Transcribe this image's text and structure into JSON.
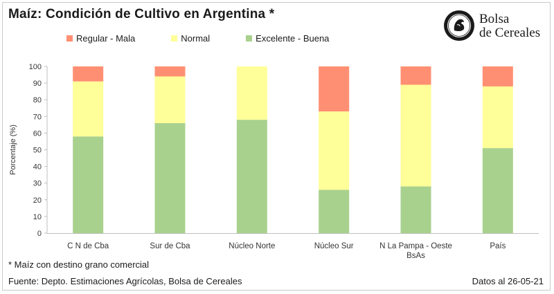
{
  "chart_data": {
    "type": "bar",
    "stacked": true,
    "title": "Maíz: Condición de Cultivo en Argentina *",
    "ylabel": "Porcentaje (%)",
    "ylim": [
      0,
      100
    ],
    "yticks": [
      0,
      10,
      20,
      30,
      40,
      50,
      60,
      70,
      80,
      90,
      100
    ],
    "grid": false,
    "legend_position": "top",
    "categories": [
      "C N de Cba",
      "Sur de Cba",
      "Núcleo Norte",
      "Núcleo Sur",
      "N La Pampa - Oeste BsAs",
      "País"
    ],
    "series": [
      {
        "name": "Excelente - Buena",
        "color": "#a9d18e",
        "values": [
          58,
          66,
          68,
          26,
          28,
          51
        ]
      },
      {
        "name": "Normal",
        "color": "#ffff99",
        "values": [
          33,
          28,
          32,
          47,
          61,
          37
        ]
      },
      {
        "name": "Regular - Mala",
        "color": "#ff8f73",
        "values": [
          9,
          6,
          0,
          27,
          11,
          12
        ]
      }
    ],
    "legend_order": [
      "Regular - Mala",
      "Normal",
      "Excelente - Buena"
    ]
  },
  "footnote": "* Maíz con destino grano comercial",
  "source": "Fuente: Depto. Estimaciones Agrícolas, Bolsa de Cereales",
  "date": "Datos al 26-05-21",
  "logo": {
    "line1": "Bolsa",
    "line2": "de Cereales"
  }
}
